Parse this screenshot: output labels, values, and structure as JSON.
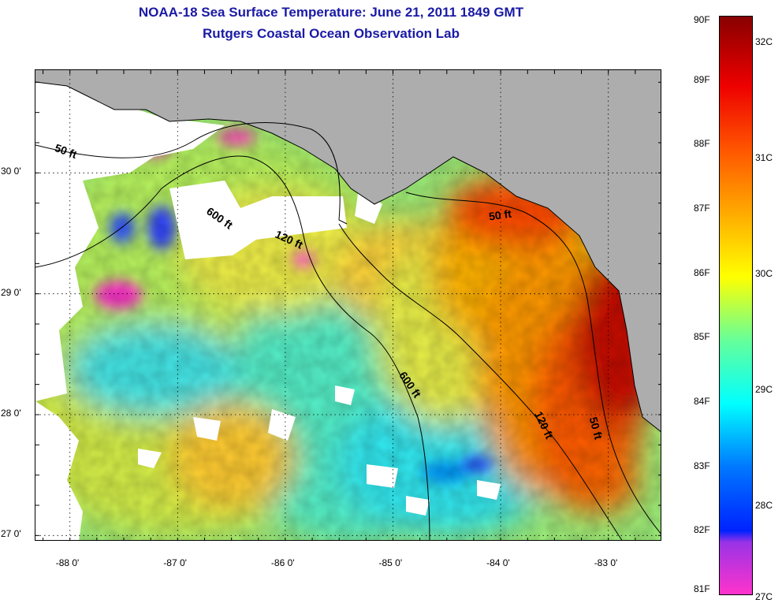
{
  "title": "NOAA-18 Sea Surface Temperature:  June 21, 2011 1849 GMT",
  "subtitle": "Rutgers Coastal Ocean Observation Lab",
  "map": {
    "x_ticks": [
      {
        "lon": -88,
        "label": "-88 0'"
      },
      {
        "lon": -87,
        "label": "-87 0'"
      },
      {
        "lon": -86,
        "label": "-86 0'"
      },
      {
        "lon": -85,
        "label": "-85 0'"
      },
      {
        "lon": -84,
        "label": "-84 0'"
      },
      {
        "lon": -83,
        "label": "-83 0'"
      }
    ],
    "y_ticks": [
      {
        "lat": 30,
        "label": "30 0'"
      },
      {
        "lat": 29,
        "label": "29 0'"
      },
      {
        "lat": 28,
        "label": "28 0'"
      },
      {
        "lat": 27,
        "label": "27 0'"
      }
    ],
    "lon_range": [
      -88.32,
      -82.5
    ],
    "lat_range": [
      26.95,
      30.85
    ],
    "contour_labels": [
      {
        "text": "50 ft",
        "lon": -88.05,
        "lat": 30.15,
        "angle": 20
      },
      {
        "text": "600 ft",
        "lon": -86.63,
        "lat": 29.6,
        "angle": 35
      },
      {
        "text": "120 ft",
        "lon": -85.98,
        "lat": 29.42,
        "angle": 25
      },
      {
        "text": "50 ft",
        "lon": -84.0,
        "lat": 29.62,
        "angle": -8
      },
      {
        "text": "600 ft",
        "lon": -84.87,
        "lat": 28.23,
        "angle": 55
      },
      {
        "text": "120 ft",
        "lon": -83.63,
        "lat": 27.9,
        "angle": 65
      },
      {
        "text": "50 ft",
        "lon": -83.15,
        "lat": 27.88,
        "angle": 75
      }
    ],
    "colors": {
      "land": "#adadad",
      "no_data": "#ffffff",
      "contour": "#000000"
    }
  },
  "colorbar": {
    "fahrenheit_labels": [
      "90F",
      "89F",
      "88F",
      "87F",
      "86F",
      "85F",
      "84F",
      "83F",
      "82F",
      "81F"
    ],
    "celsius_labels": [
      "32C",
      "31C",
      "30C",
      "29C",
      "28C",
      "27C"
    ],
    "range_f": [
      81,
      90
    ],
    "colors": [
      "#ff33cc",
      "#8833ee",
      "#0022ff",
      "#00aaff",
      "#00ffff",
      "#66ff99",
      "#ffff00",
      "#ffaa00",
      "#ff4400",
      "#ff0000",
      "#880000"
    ]
  }
}
